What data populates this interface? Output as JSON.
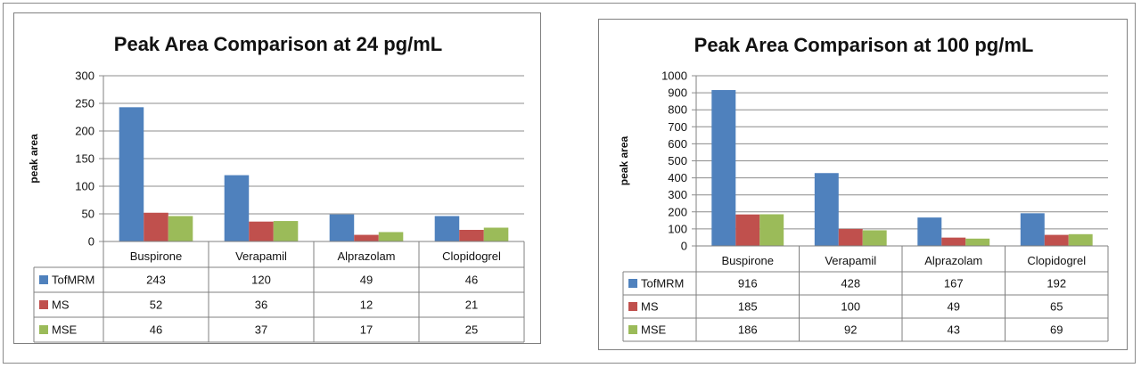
{
  "colors": {
    "TofMRM": "#4f81bd",
    "MS": "#c0504d",
    "MSE": "#9bbb59"
  },
  "chart_data": [
    {
      "type": "bar",
      "title": "Peak Area Comparison at 24 pg/mL",
      "ylabel": "peak area",
      "xlabel": "",
      "categories": [
        "Buspirone",
        "Verapamil",
        "Alprazolam",
        "Clopidogrel"
      ],
      "ylim": [
        0,
        300
      ],
      "yticks": [
        0,
        50,
        100,
        150,
        200,
        250,
        300
      ],
      "series": [
        {
          "name": "TofMRM",
          "values": [
            243,
            120,
            49,
            46
          ]
        },
        {
          "name": "MS",
          "values": [
            52,
            36,
            12,
            21
          ]
        },
        {
          "name": "MSE",
          "values": [
            46,
            37,
            17,
            25
          ]
        }
      ],
      "grid": true,
      "legend": "data table"
    },
    {
      "type": "bar",
      "title": "Peak Area Comparison at 100 pg/mL",
      "ylabel": "peak area",
      "xlabel": "",
      "categories": [
        "Buspirone",
        "Verapamil",
        "Alprazolam",
        "Clopidogrel"
      ],
      "ylim": [
        0,
        1000
      ],
      "yticks": [
        0,
        100,
        200,
        300,
        400,
        500,
        600,
        700,
        800,
        900,
        1000
      ],
      "series": [
        {
          "name": "TofMRM",
          "values": [
            916,
            428,
            167,
            192
          ]
        },
        {
          "name": "MS",
          "values": [
            185,
            100,
            49,
            65
          ]
        },
        {
          "name": "MSE",
          "values": [
            186,
            92,
            43,
            69
          ]
        }
      ],
      "grid": true,
      "legend": "data table"
    }
  ]
}
